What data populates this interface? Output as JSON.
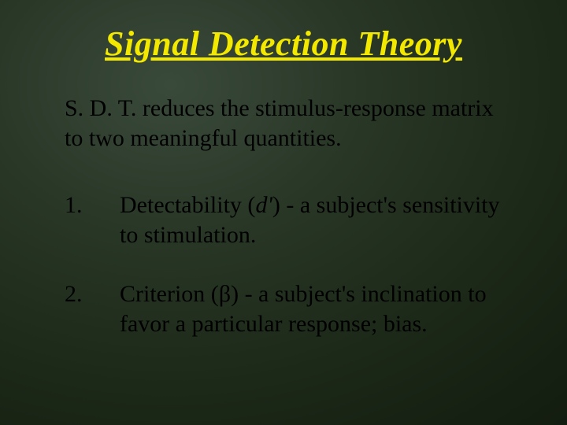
{
  "title": "Signal Detection Theory",
  "intro": "S. D. T. reduces the stimulus-response matrix to two meaningful quantities.",
  "items": [
    {
      "num": "1.",
      "prefix": "Detectability (",
      "symbol": "d'",
      "suffix": ") - a subject's sensitivity to stimulation."
    },
    {
      "num": "2.",
      "prefix": "Criterion (",
      "symbol": "β",
      "suffix": ") - a subject's inclination to favor a particular response; bias."
    }
  ],
  "style": {
    "title_color": "#f2e800",
    "body_color": "#000000",
    "title_fontsize": 44,
    "body_fontsize": 30,
    "bg_center": "#3a4a3a",
    "bg_edge": "#0d150a"
  }
}
